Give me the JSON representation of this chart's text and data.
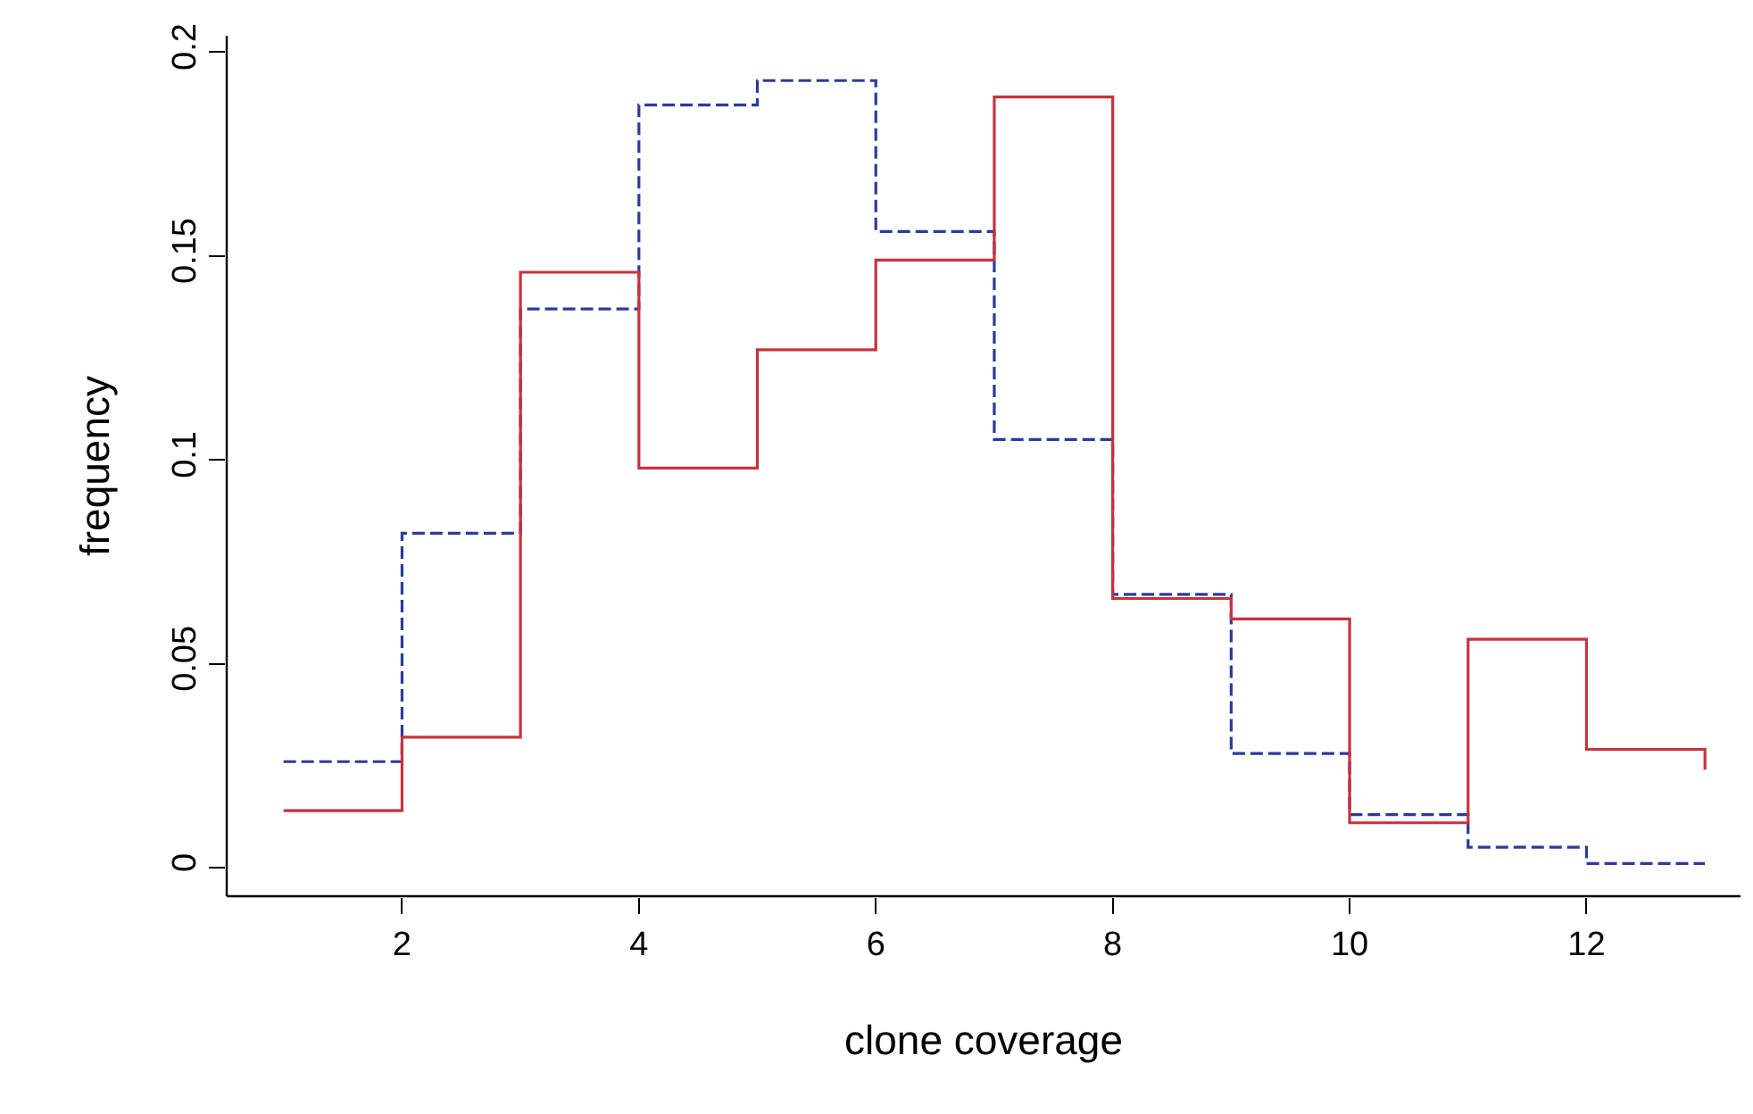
{
  "chart_data": {
    "type": "step",
    "xlabel": "clone coverage",
    "ylabel": "frequency",
    "x": [
      1,
      2,
      3,
      4,
      5,
      6,
      7,
      8,
      9,
      10,
      11,
      12,
      13
    ],
    "series": [
      {
        "color": "#2b3a9e",
        "line_style": "dashed",
        "values": [
          0.026,
          0.082,
          0.137,
          0.187,
          0.193,
          0.156,
          0.105,
          0.067,
          0.028,
          0.013,
          0.005,
          0.001,
          0.001
        ]
      },
      {
        "color": "#c8323c",
        "line_style": "solid",
        "values": [
          0.014,
          0.032,
          0.146,
          0.098,
          0.127,
          0.149,
          0.189,
          0.066,
          0.061,
          0.011,
          0.056,
          0.029,
          0.024
        ]
      }
    ],
    "xlim": [
      0.52,
      13.3
    ],
    "ylim": [
      -0.007,
      0.204
    ],
    "xticks": [
      2,
      4,
      6,
      8,
      10,
      12
    ],
    "yticks": [
      0,
      {
        "value": 0.05,
        "label": "0.05"
      },
      {
        "value": 0.1,
        "label": "0.1"
      },
      {
        "value": 0.15,
        "label": "0.15"
      },
      {
        "value": 0.2,
        "label": "0.2"
      }
    ],
    "marker": "none"
  }
}
